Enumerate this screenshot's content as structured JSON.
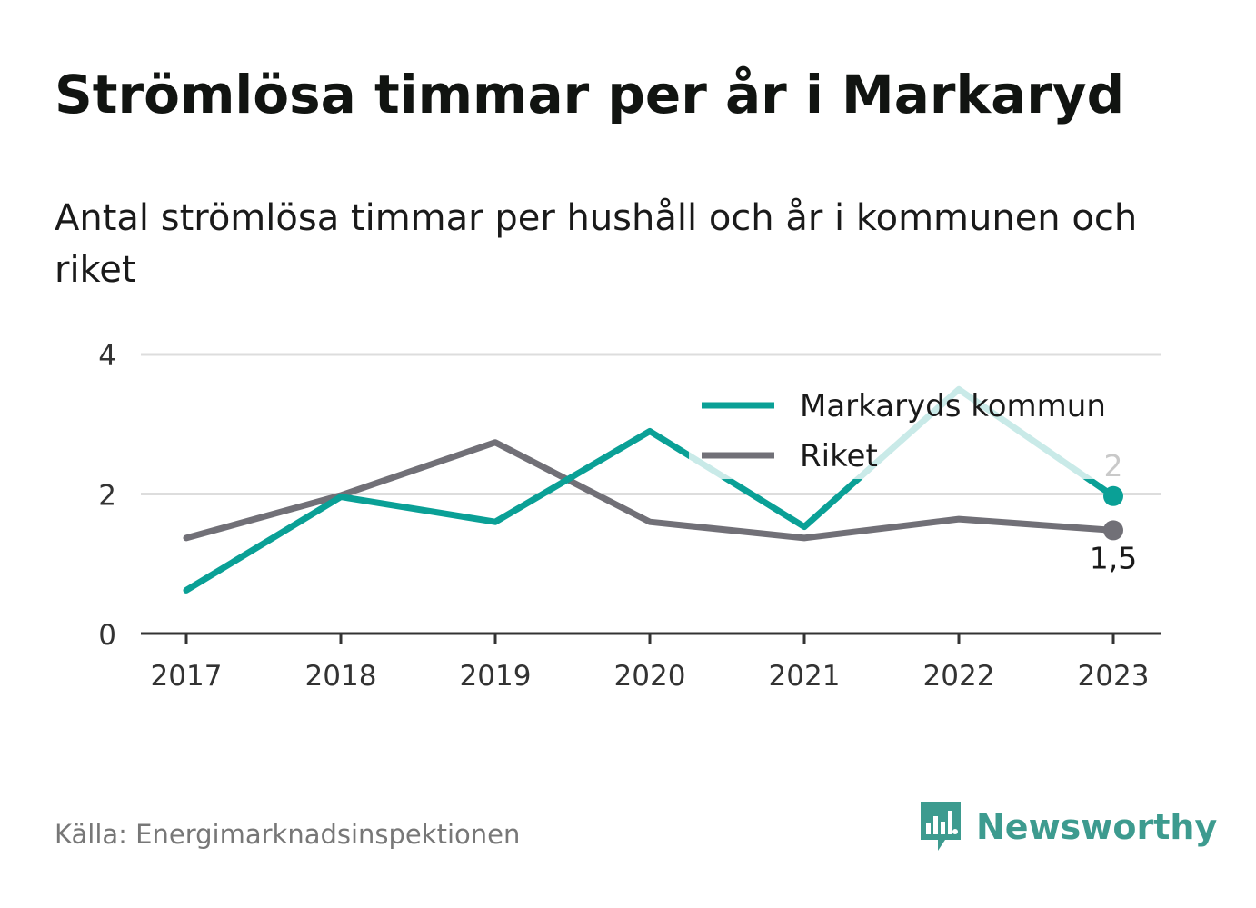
{
  "header": {
    "title": "Strömlösa timmar per år i Markaryd",
    "subtitle": "Antal strömlösa timmar per hushåll och år i kommunen och riket"
  },
  "footer": {
    "source": "Källa: Energimarknadsinspektionen",
    "brand": "Newsworthy"
  },
  "colors": {
    "markaryd": "#0aa096",
    "riket": "#717077",
    "grid": "#dddddd",
    "axis": "#333333",
    "brand": "#3d9b8f"
  },
  "chart_data": {
    "type": "line",
    "categories": [
      "2017",
      "2018",
      "2019",
      "2020",
      "2021",
      "2022",
      "2023"
    ],
    "y_ticks": [
      "0",
      "2",
      "4"
    ],
    "ylim": [
      0,
      4
    ],
    "grid": true,
    "legend_position": "top-right",
    "series": [
      {
        "name": "Markaryds kommun",
        "values": [
          0.62,
          1.96,
          1.6,
          2.9,
          1.53,
          3.5,
          1.97
        ],
        "end_label": "2"
      },
      {
        "name": "Riket",
        "values": [
          1.37,
          1.98,
          2.74,
          1.6,
          1.37,
          1.64,
          1.48
        ],
        "end_label": "1,5"
      }
    ]
  }
}
